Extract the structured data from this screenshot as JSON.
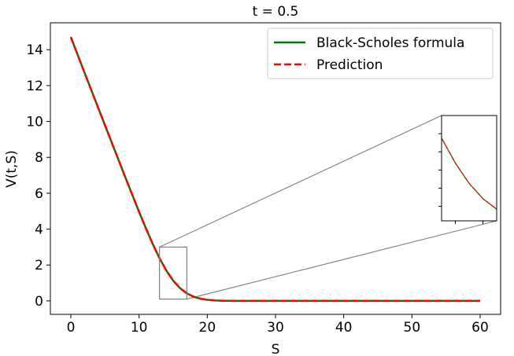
{
  "chart_data": {
    "type": "line",
    "title": "t = 0.5",
    "xlabel": "S",
    "ylabel": "V(t,S)",
    "xlim": [
      -3,
      63
    ],
    "ylim": [
      -0.75,
      15.5
    ],
    "xticks": [
      0,
      10,
      20,
      30,
      40,
      50,
      60
    ],
    "yticks": [
      0,
      2,
      4,
      6,
      8,
      10,
      12,
      14
    ],
    "legend_position": "top-right",
    "grid": false,
    "series": [
      {
        "name": "Black-Scholes formula",
        "style": "solid",
        "color": "#008000",
        "x": [
          0,
          1,
          2,
          3,
          4,
          5,
          6,
          7,
          8,
          9,
          10,
          11,
          12,
          13,
          14,
          15,
          16,
          17,
          18,
          19,
          20,
          21,
          22,
          24,
          26,
          30,
          35,
          40,
          45,
          50,
          55,
          60
        ],
        "y": [
          14.7,
          13.72,
          12.73,
          11.75,
          10.77,
          9.8,
          8.82,
          7.85,
          6.88,
          5.92,
          4.97,
          4.05,
          3.18,
          2.38,
          1.69,
          1.13,
          0.71,
          0.42,
          0.23,
          0.12,
          0.06,
          0.03,
          0.01,
          0.0,
          0.0,
          0.0,
          0.0,
          0.0,
          0.0,
          0.0,
          0.0,
          0.0
        ]
      },
      {
        "name": "Prediction",
        "style": "dashed",
        "color": "#ff0000",
        "x": [
          0,
          1,
          2,
          3,
          4,
          5,
          6,
          7,
          8,
          9,
          10,
          11,
          12,
          13,
          14,
          15,
          16,
          17,
          18,
          19,
          20,
          21,
          22,
          24,
          26,
          30,
          35,
          40,
          45,
          50,
          55,
          60
        ],
        "y": [
          14.7,
          13.72,
          12.73,
          11.75,
          10.77,
          9.8,
          8.82,
          7.85,
          6.88,
          5.92,
          4.97,
          4.05,
          3.18,
          2.38,
          1.69,
          1.13,
          0.71,
          0.42,
          0.23,
          0.12,
          0.06,
          0.03,
          0.01,
          0.0,
          0.0,
          0.0,
          0.0,
          0.0,
          0.0,
          0.0,
          0.0,
          0.0
        ]
      }
    ],
    "inset": {
      "xlim": [
        13,
        17
      ],
      "ylim": [
        0.1,
        3.0
      ],
      "tick_labels": false
    }
  }
}
